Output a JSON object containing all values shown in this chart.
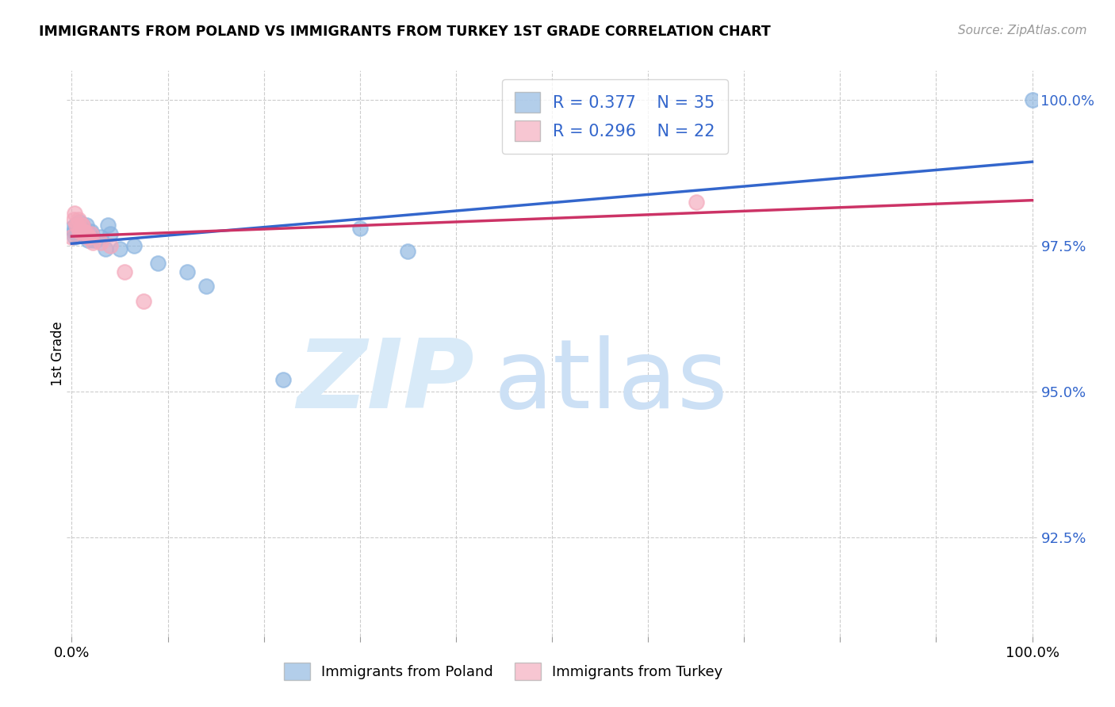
{
  "title": "IMMIGRANTS FROM POLAND VS IMMIGRANTS FROM TURKEY 1ST GRADE CORRELATION CHART",
  "source": "Source: ZipAtlas.com",
  "ylabel": "1st Grade",
  "x_ticks": [
    0.0,
    0.1,
    0.2,
    0.3,
    0.4,
    0.5,
    0.6,
    0.7,
    0.8,
    0.9,
    1.0
  ],
  "y_ticks_labels": [
    "92.5%",
    "95.0%",
    "97.5%",
    "100.0%"
  ],
  "y_ticks_values": [
    0.925,
    0.95,
    0.975,
    1.0
  ],
  "xlim": [
    -0.005,
    1.005
  ],
  "ylim": [
    0.908,
    1.005
  ],
  "poland_R": 0.377,
  "poland_N": 35,
  "turkey_R": 0.296,
  "turkey_N": 22,
  "poland_color": "#8ab4e0",
  "turkey_color": "#f4a8bb",
  "poland_line_color": "#3366cc",
  "turkey_line_color": "#cc3366",
  "text_color": "#3366cc",
  "poland_x": [
    0.0,
    0.002,
    0.003,
    0.004,
    0.005,
    0.005,
    0.006,
    0.007,
    0.008,
    0.009,
    0.01,
    0.01,
    0.011,
    0.012,
    0.013,
    0.015,
    0.015,
    0.017,
    0.02,
    0.02,
    0.022,
    0.025,
    0.03,
    0.035,
    0.038,
    0.04,
    0.05,
    0.065,
    0.09,
    0.12,
    0.14,
    0.22,
    0.3,
    0.35,
    1.0
  ],
  "poland_y": [
    0.978,
    0.9775,
    0.9765,
    0.9785,
    0.977,
    0.9785,
    0.9775,
    0.978,
    0.979,
    0.9785,
    0.977,
    0.9775,
    0.9785,
    0.9775,
    0.977,
    0.9775,
    0.9785,
    0.976,
    0.9775,
    0.977,
    0.976,
    0.976,
    0.9765,
    0.9745,
    0.9785,
    0.977,
    0.9745,
    0.975,
    0.972,
    0.9705,
    0.968,
    0.952,
    0.978,
    0.974,
    1.0
  ],
  "turkey_x": [
    0.0,
    0.002,
    0.003,
    0.005,
    0.006,
    0.007,
    0.008,
    0.009,
    0.01,
    0.011,
    0.012,
    0.013,
    0.015,
    0.016,
    0.018,
    0.02,
    0.022,
    0.03,
    0.04,
    0.055,
    0.075,
    0.65
  ],
  "turkey_y": [
    0.9765,
    0.9795,
    0.9805,
    0.9785,
    0.9785,
    0.9795,
    0.9775,
    0.9775,
    0.9785,
    0.9785,
    0.9775,
    0.9775,
    0.9765,
    0.977,
    0.9765,
    0.977,
    0.9755,
    0.9755,
    0.975,
    0.9705,
    0.9655,
    0.9825
  ],
  "line_x_start": 0.0,
  "line_x_end": 1.0
}
